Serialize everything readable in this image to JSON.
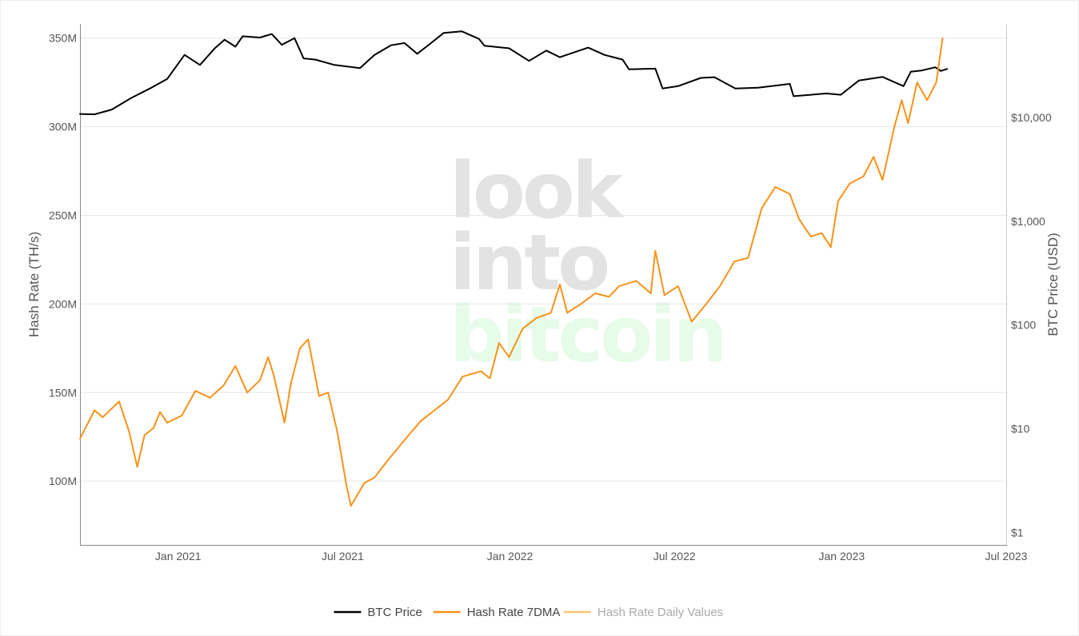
{
  "watermark": {
    "line1": "look",
    "line2": "into",
    "line3": "bitcoin"
  },
  "colors": {
    "btc_price": "#000000",
    "hash_rate_7dma": "#f7931a",
    "hash_rate_daily": "#f5c778",
    "grid": "#e6e6e6",
    "axis_text": "#555555",
    "watermark_grey": "#e3e3e3",
    "watermark_green": "#e6fbe8"
  },
  "chart_data": {
    "type": "line",
    "title": "",
    "xlabel": "",
    "ylabel_left": "Hash Rate (TH/s)",
    "ylabel_right": "BTC Price (USD)",
    "x_tick_labels": [
      "Jan 2021",
      "Jul 2021",
      "Jan 2022",
      "Jul 2022",
      "Jan 2023",
      "Jul 2023"
    ],
    "y_left_tick_labels": [
      "100M",
      "150M",
      "200M",
      "250M",
      "300M",
      "350M"
    ],
    "y_right_tick_labels": [
      "$1",
      "$10",
      "$100",
      "$1,000",
      "$10,000"
    ],
    "y_left_range": [
      64000000,
      358000000
    ],
    "y_right_range_log10": [
      -0.12,
      4.9
    ],
    "y_right_scale": "log",
    "x_range": [
      "2020-09-15",
      "2023-07-01"
    ],
    "legend_position": "bottom-center",
    "grid": true,
    "series": [
      {
        "name": "BTC Price",
        "axis": "right",
        "points": [
          [
            "2020-09-15",
            10800
          ],
          [
            "2020-10-01",
            10700
          ],
          [
            "2020-10-20",
            11900
          ],
          [
            "2020-11-10",
            15300
          ],
          [
            "2020-12-01",
            19000
          ],
          [
            "2020-12-20",
            23500
          ],
          [
            "2021-01-08",
            40000
          ],
          [
            "2021-01-25",
            32000
          ],
          [
            "2021-02-10",
            46000
          ],
          [
            "2021-02-21",
            56000
          ],
          [
            "2021-03-05",
            48000
          ],
          [
            "2021-03-13",
            60500
          ],
          [
            "2021-04-01",
            58800
          ],
          [
            "2021-04-14",
            63500
          ],
          [
            "2021-04-25",
            50000
          ],
          [
            "2021-05-09",
            58000
          ],
          [
            "2021-05-19",
            37000
          ],
          [
            "2021-06-01",
            36000
          ],
          [
            "2021-06-22",
            32000
          ],
          [
            "2021-07-20",
            29800
          ],
          [
            "2021-08-05",
            40000
          ],
          [
            "2021-08-23",
            49500
          ],
          [
            "2021-09-07",
            52000
          ],
          [
            "2021-09-21",
            41000
          ],
          [
            "2021-10-05",
            51000
          ],
          [
            "2021-10-20",
            65000
          ],
          [
            "2021-11-09",
            67500
          ],
          [
            "2021-11-28",
            57000
          ],
          [
            "2021-12-04",
            49000
          ],
          [
            "2021-12-31",
            46300
          ],
          [
            "2022-01-22",
            35000
          ],
          [
            "2022-02-10",
            44000
          ],
          [
            "2022-02-25",
            38000
          ],
          [
            "2022-03-28",
            47000
          ],
          [
            "2022-04-15",
            40000
          ],
          [
            "2022-05-05",
            36000
          ],
          [
            "2022-05-12",
            29000
          ],
          [
            "2022-06-10",
            29500
          ],
          [
            "2022-06-18",
            19000
          ],
          [
            "2022-07-05",
            20000
          ],
          [
            "2022-07-30",
            24000
          ],
          [
            "2022-08-14",
            24400
          ],
          [
            "2022-09-06",
            19000
          ],
          [
            "2022-10-01",
            19300
          ],
          [
            "2022-11-05",
            21000
          ],
          [
            "2022-11-09",
            16000
          ],
          [
            "2022-12-15",
            17000
          ],
          [
            "2022-12-31",
            16500
          ],
          [
            "2023-01-20",
            22700
          ],
          [
            "2023-02-15",
            24500
          ],
          [
            "2023-03-10",
            20000
          ],
          [
            "2023-03-18",
            27500
          ],
          [
            "2023-03-30",
            28300
          ],
          [
            "2023-04-14",
            30400
          ],
          [
            "2023-04-20",
            28000
          ],
          [
            "2023-04-27",
            29300
          ]
        ]
      },
      {
        "name": "Hash Rate 7DMA",
        "axis": "left",
        "points": [
          [
            "2020-09-15",
            124000000
          ],
          [
            "2020-10-01",
            140000000
          ],
          [
            "2020-10-10",
            136000000
          ],
          [
            "2020-10-28",
            145000000
          ],
          [
            "2020-11-08",
            128000000
          ],
          [
            "2020-11-17",
            108000000
          ],
          [
            "2020-11-25",
            126000000
          ],
          [
            "2020-12-05",
            130000000
          ],
          [
            "2020-12-12",
            139000000
          ],
          [
            "2020-12-20",
            133000000
          ],
          [
            "2021-01-05",
            137000000
          ],
          [
            "2021-01-20",
            151000000
          ],
          [
            "2021-02-05",
            147000000
          ],
          [
            "2021-02-20",
            154000000
          ],
          [
            "2021-03-05",
            165000000
          ],
          [
            "2021-03-18",
            150000000
          ],
          [
            "2021-04-01",
            157000000
          ],
          [
            "2021-04-10",
            170000000
          ],
          [
            "2021-04-16",
            160000000
          ],
          [
            "2021-04-28",
            133000000
          ],
          [
            "2021-05-05",
            155000000
          ],
          [
            "2021-05-15",
            175000000
          ],
          [
            "2021-05-24",
            180000000
          ],
          [
            "2021-06-05",
            148000000
          ],
          [
            "2021-06-15",
            150000000
          ],
          [
            "2021-06-25",
            128000000
          ],
          [
            "2021-07-05",
            98000000
          ],
          [
            "2021-07-10",
            86000000
          ],
          [
            "2021-07-25",
            99000000
          ],
          [
            "2021-08-05",
            102000000
          ],
          [
            "2021-08-20",
            112000000
          ],
          [
            "2021-09-10",
            125000000
          ],
          [
            "2021-09-25",
            134000000
          ],
          [
            "2021-10-10",
            140000000
          ],
          [
            "2021-10-25",
            146000000
          ],
          [
            "2021-11-10",
            159000000
          ],
          [
            "2021-11-30",
            162000000
          ],
          [
            "2021-12-10",
            158000000
          ],
          [
            "2021-12-20",
            178000000
          ],
          [
            "2021-12-31",
            170000000
          ],
          [
            "2022-01-15",
            186000000
          ],
          [
            "2022-01-30",
            192000000
          ],
          [
            "2022-02-15",
            195000000
          ],
          [
            "2022-02-25",
            211000000
          ],
          [
            "2022-03-05",
            195000000
          ],
          [
            "2022-03-20",
            200000000
          ],
          [
            "2022-04-05",
            206000000
          ],
          [
            "2022-04-20",
            204000000
          ],
          [
            "2022-05-01",
            210000000
          ],
          [
            "2022-05-20",
            213000000
          ],
          [
            "2022-06-05",
            206000000
          ],
          [
            "2022-06-10",
            230000000
          ],
          [
            "2022-06-20",
            205000000
          ],
          [
            "2022-07-05",
            210000000
          ],
          [
            "2022-07-20",
            190000000
          ],
          [
            "2022-08-05",
            200000000
          ],
          [
            "2022-08-20",
            210000000
          ],
          [
            "2022-09-05",
            224000000
          ],
          [
            "2022-09-20",
            226000000
          ],
          [
            "2022-10-05",
            254000000
          ],
          [
            "2022-10-20",
            266000000
          ],
          [
            "2022-11-05",
            262000000
          ],
          [
            "2022-11-15",
            248000000
          ],
          [
            "2022-11-28",
            238000000
          ],
          [
            "2022-12-10",
            240000000
          ],
          [
            "2022-12-20",
            232000000
          ],
          [
            "2022-12-28",
            258000000
          ],
          [
            "2023-01-10",
            268000000
          ],
          [
            "2023-01-25",
            272000000
          ],
          [
            "2023-02-05",
            283000000
          ],
          [
            "2023-02-15",
            270000000
          ],
          [
            "2023-02-28",
            300000000
          ],
          [
            "2023-03-08",
            315000000
          ],
          [
            "2023-03-15",
            302000000
          ],
          [
            "2023-03-25",
            325000000
          ],
          [
            "2023-04-05",
            315000000
          ],
          [
            "2023-04-15",
            325000000
          ],
          [
            "2023-04-22",
            350000000
          ]
        ]
      },
      {
        "name": "Hash Rate Daily Values",
        "axis": "left",
        "points": []
      }
    ]
  }
}
